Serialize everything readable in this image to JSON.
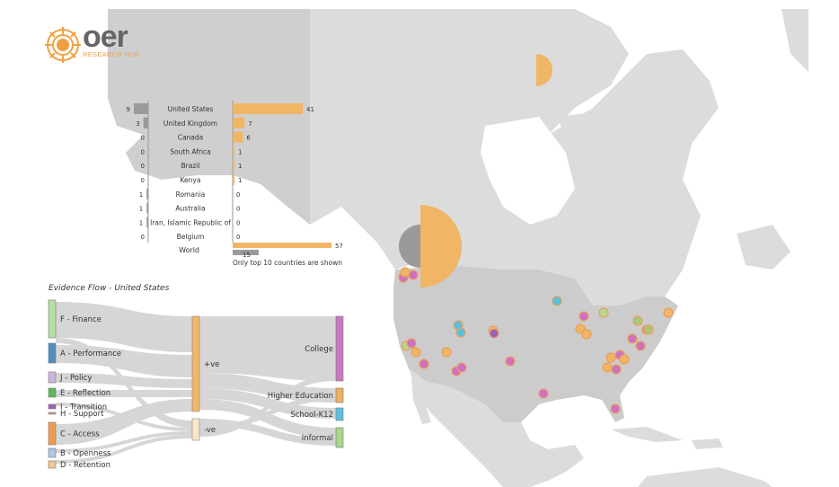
{
  "logo": {
    "word": "oer",
    "subtitle": "RESEARCH HUB"
  },
  "colors": {
    "orange": "#f0b565",
    "grey": "#9a9a9a",
    "land": "#dcdcdc",
    "us": "#cccccc"
  },
  "country_chart": {
    "countries": [
      {
        "name": "United States",
        "grey": 9,
        "orange": 41
      },
      {
        "name": "United Kingdom",
        "grey": 3,
        "orange": 7
      },
      {
        "name": "Canada",
        "grey": 0,
        "orange": 6
      },
      {
        "name": "South Africa",
        "grey": 0,
        "orange": 1
      },
      {
        "name": "Brazil",
        "grey": 0,
        "orange": 1
      },
      {
        "name": "Kenya",
        "grey": 0,
        "orange": 1
      },
      {
        "name": "Romania",
        "grey": 1,
        "orange": 0
      },
      {
        "name": "Australia",
        "grey": 1,
        "orange": 0
      },
      {
        "name": "Iran, Islamic Republic of",
        "grey": 1,
        "orange": 0
      },
      {
        "name": "Belgium",
        "grey": 0,
        "orange": 0
      }
    ],
    "world": {
      "name": "World",
      "orange": 57,
      "grey": 15
    },
    "note": "Only top 10 countries are shown"
  },
  "sankey": {
    "title": "Evidence Flow - United States",
    "sources": [
      {
        "label": "F - Finance",
        "color": "#b5dfa0"
      },
      {
        "label": "A - Performance",
        "color": "#4f8fc0"
      },
      {
        "label": "J - Policy",
        "color": "#cdb4e0"
      },
      {
        "label": "E - Reflection",
        "color": "#5cb85c"
      },
      {
        "label": "I - Transition",
        "color": "#9c60b8"
      },
      {
        "label": "H - Support",
        "color": "#e89090"
      },
      {
        "label": "C - Access",
        "color": "#f09a50"
      },
      {
        "label": "B - Openness",
        "color": "#b0c8e0"
      },
      {
        "label": "D - Retention",
        "color": "#f5c890"
      }
    ],
    "middle": [
      {
        "label": "+ve",
        "color": "#f0b565"
      },
      {
        "label": "-ve",
        "color": "#f8e8c8"
      }
    ],
    "targets": [
      {
        "label": "College",
        "color": "#c878c0"
      },
      {
        "label": "Higher Education",
        "color": "#f0b060"
      },
      {
        "label": "School-K12",
        "color": "#5bc0de"
      },
      {
        "label": "Informal",
        "color": "#a8d88a"
      }
    ]
  }
}
